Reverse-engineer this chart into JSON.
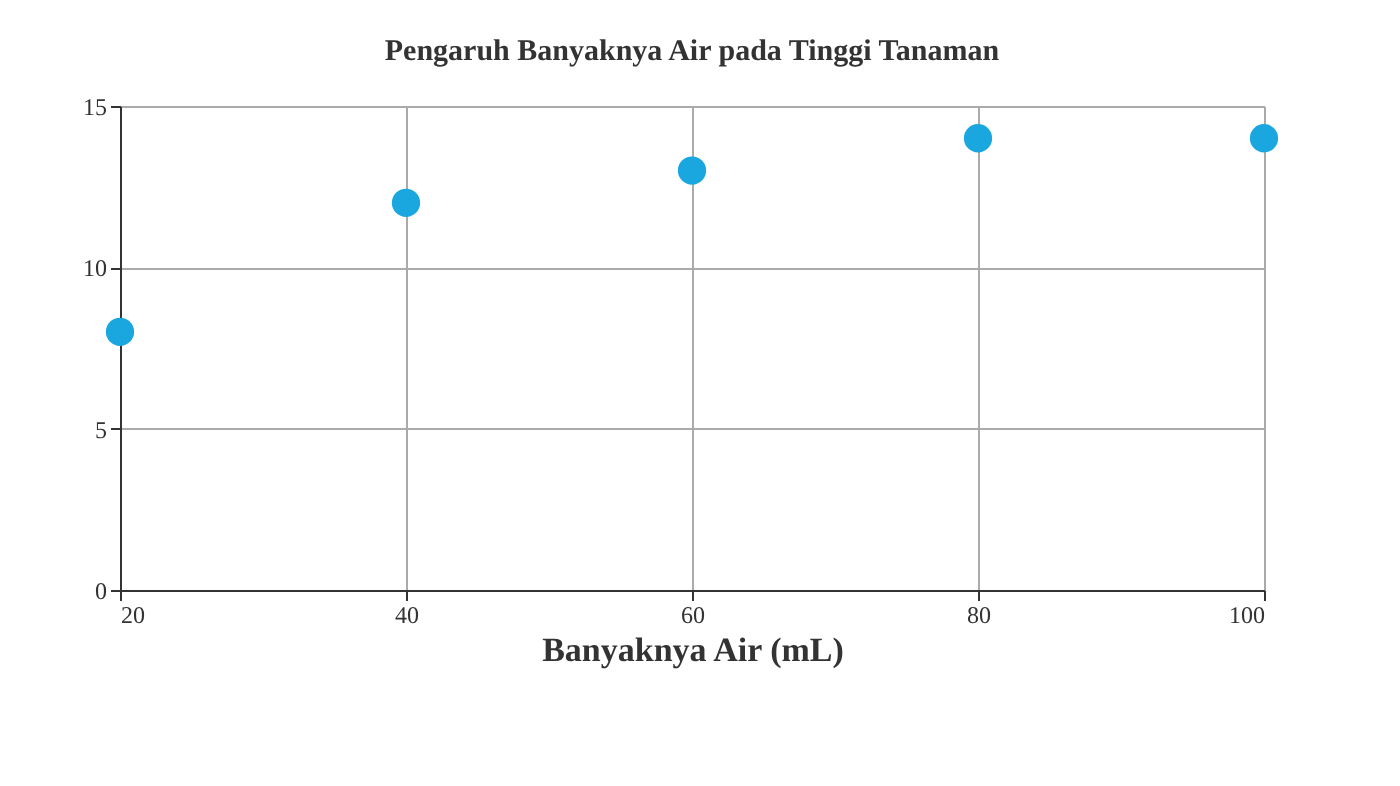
{
  "chart_data": {
    "type": "scatter",
    "title": "Pengaruh Banyaknya Air pada Tinggi Tanaman",
    "xlabel": "Banyaknya Air (mL)",
    "x": [
      20,
      40,
      60,
      80,
      100
    ],
    "series": [
      {
        "color": "#1aa7e0",
        "values": [
          8,
          12,
          13,
          14,
          14
        ]
      }
    ],
    "xlim": [
      20,
      100
    ],
    "xticks": [
      20,
      40,
      60,
      80,
      100
    ],
    "ylim": [
      0,
      15
    ],
    "yticks": [
      0,
      5,
      10,
      15
    ],
    "grid": true,
    "marker": "circle",
    "legend": false
  }
}
